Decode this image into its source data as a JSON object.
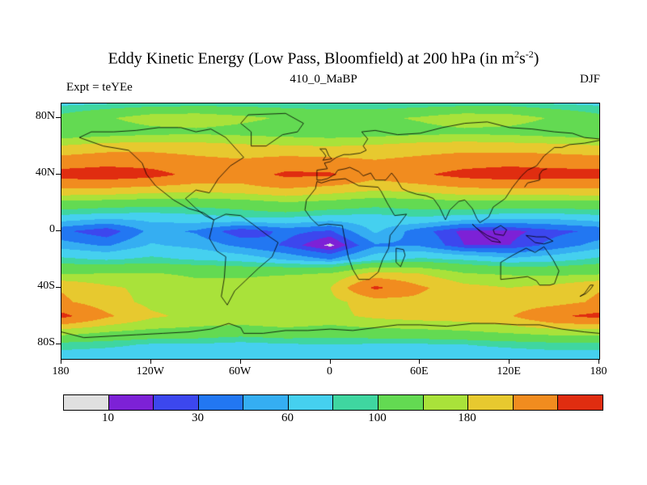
{
  "header": {
    "title_plain": "Eddy Kinetic Energy (Low Pass, Bloomfield) at 200 hPa (in m2 s-2)",
    "title_parts": {
      "pre": "Eddy Kinetic Energy (Low Pass, Bloomfield) at 200 hPa (in m",
      "sup1": "2",
      "mid": "s",
      "sup2": "-2",
      "post": ")"
    },
    "subtitle": "410_0_MaBP",
    "experiment_label": "Expt = teYEe",
    "season": "DJF"
  },
  "chart_data": {
    "type": "heatmap",
    "title": "Eddy Kinetic Energy (Low Pass, Bloomfield) at 200 hPa (in m2 s-2)",
    "subtitle": "410_0_MaBP",
    "experiment": "teYEe",
    "season": "DJF",
    "units": "m2 s-2",
    "pressure_level": "200 hPa",
    "xlabel_ticks": [
      "180",
      "120W",
      "60W",
      "0",
      "60E",
      "120E",
      "180"
    ],
    "xtick_lons": [
      -180,
      -120,
      -60,
      0,
      60,
      120,
      180
    ],
    "ylabel_ticks": [
      "80N",
      "40N",
      "0",
      "40S",
      "80S"
    ],
    "ytick_lats": [
      80,
      40,
      0,
      -40,
      -80
    ],
    "lon": [
      -180,
      -150,
      -120,
      -90,
      -60,
      -30,
      0,
      30,
      60,
      90,
      120,
      150,
      180
    ],
    "lat": [
      90,
      80,
      70,
      60,
      50,
      40,
      30,
      20,
      10,
      0,
      -10,
      -20,
      -30,
      -40,
      -50,
      -60,
      -70,
      -80,
      -90
    ],
    "values": [
      [
        75,
        80,
        85,
        88,
        88,
        85,
        80,
        80,
        85,
        88,
        88,
        80,
        75
      ],
      [
        110,
        135,
        160,
        165,
        150,
        135,
        130,
        132,
        145,
        165,
        160,
        135,
        110
      ],
      [
        105,
        115,
        125,
        130,
        125,
        118,
        112,
        118,
        125,
        130,
        125,
        115,
        105
      ],
      [
        185,
        200,
        205,
        200,
        190,
        185,
        180,
        188,
        200,
        205,
        200,
        195,
        185
      ],
      [
        255,
        270,
        265,
        245,
        235,
        250,
        245,
        232,
        245,
        262,
        270,
        262,
        255
      ],
      [
        330,
        340,
        325,
        280,
        262,
        315,
        310,
        250,
        290,
        325,
        340,
        330,
        330
      ],
      [
        228,
        225,
        210,
        200,
        210,
        228,
        210,
        190,
        200,
        222,
        228,
        228,
        228
      ],
      [
        125,
        118,
        112,
        112,
        118,
        135,
        125,
        112,
        118,
        125,
        122,
        122,
        125
      ],
      [
        72,
        66,
        66,
        72,
        80,
        82,
        72,
        72,
        80,
        72,
        66,
        66,
        72
      ],
      [
        33,
        20,
        50,
        43,
        20,
        34,
        28,
        63,
        36,
        16,
        16,
        26,
        33
      ],
      [
        52,
        43,
        62,
        55,
        41,
        28,
        7,
        43,
        43,
        20,
        20,
        35,
        52
      ],
      [
        85,
        78,
        85,
        78,
        72,
        58,
        45,
        72,
        85,
        78,
        65,
        72,
        85
      ],
      [
        135,
        142,
        142,
        135,
        130,
        135,
        142,
        195,
        180,
        142,
        135,
        130,
        135
      ],
      [
        225,
        188,
        168,
        150,
        160,
        180,
        180,
        315,
        240,
        195,
        180,
        195,
        225
      ],
      [
        240,
        200,
        168,
        155,
        168,
        175,
        168,
        200,
        215,
        200,
        195,
        207,
        240
      ],
      [
        320,
        240,
        188,
        168,
        168,
        180,
        168,
        190,
        200,
        205,
        225,
        290,
        320
      ],
      [
        168,
        148,
        135,
        130,
        123,
        130,
        123,
        130,
        135,
        142,
        155,
        168,
        168
      ],
      [
        90,
        85,
        78,
        78,
        72,
        78,
        80,
        78,
        78,
        80,
        85,
        90,
        90
      ],
      [
        65,
        65,
        65,
        65,
        65,
        65,
        65,
        65,
        65,
        65,
        65,
        65,
        65
      ]
    ],
    "levels": [
      10,
      20,
      30,
      45,
      60,
      80,
      100,
      140,
      180,
      230,
      300
    ],
    "colors": [
      "#e0e0e0",
      "#7d21d6",
      "#3c47ee",
      "#2277f2",
      "#35aef2",
      "#45d0ef",
      "#3fd6a0",
      "#63da52",
      "#a9e23a",
      "#e7c92f",
      "#f18c1f",
      "#e02d10"
    ],
    "colorbar_labels": [
      "10",
      "30",
      "60",
      "100",
      "180"
    ],
    "colorbar_label_level_indices": [
      0,
      2,
      4,
      6,
      8
    ],
    "axis_ranges": {
      "lon": [
        -180,
        180
      ],
      "lat": [
        -90,
        90
      ]
    },
    "coastlines": {
      "north_america": [
        [
          -168,
          66
        ],
        [
          -160,
          70
        ],
        [
          -145,
          70
        ],
        [
          -130,
          71
        ],
        [
          -115,
          73
        ],
        [
          -100,
          73
        ],
        [
          -90,
          70
        ],
        [
          -80,
          72
        ],
        [
          -70,
          66
        ],
        [
          -58,
          52
        ],
        [
          -67,
          46
        ],
        [
          -75,
          37
        ],
        [
          -81,
          27
        ],
        [
          -90,
          29
        ],
        [
          -97,
          23
        ],
        [
          -90,
          16
        ],
        [
          -84,
          11
        ],
        [
          -78,
          8
        ],
        [
          -85,
          13
        ],
        [
          -95,
          16
        ],
        [
          -105,
          22
        ],
        [
          -117,
          32
        ],
        [
          -123,
          40
        ],
        [
          -126,
          48
        ],
        [
          -135,
          57
        ],
        [
          -152,
          60
        ],
        [
          -168,
          66
        ]
      ],
      "south_america": [
        [
          -78,
          8
        ],
        [
          -70,
          12
        ],
        [
          -60,
          11
        ],
        [
          -52,
          5
        ],
        [
          -42,
          -3
        ],
        [
          -35,
          -8
        ],
        [
          -39,
          -18
        ],
        [
          -48,
          -26
        ],
        [
          -57,
          -35
        ],
        [
          -64,
          -42
        ],
        [
          -69,
          -52
        ],
        [
          -73,
          -46
        ],
        [
          -71,
          -33
        ],
        [
          -70,
          -18
        ],
        [
          -76,
          -14
        ],
        [
          -81,
          -5
        ],
        [
          -78,
          8
        ]
      ],
      "greenland": [
        [
          -53,
          60
        ],
        [
          -43,
          60
        ],
        [
          -32,
          68
        ],
        [
          -22,
          70
        ],
        [
          -18,
          76
        ],
        [
          -30,
          83
        ],
        [
          -55,
          82
        ],
        [
          -60,
          76
        ],
        [
          -53,
          70
        ],
        [
          -53,
          60
        ]
      ],
      "eurasia_north": [
        [
          -9,
          36
        ],
        [
          -9,
          43
        ],
        [
          -2,
          44
        ],
        [
          -4,
          48
        ],
        [
          0,
          49
        ],
        [
          4,
          52
        ],
        [
          9,
          54
        ],
        [
          13,
          54
        ],
        [
          20,
          55
        ],
        [
          24,
          57
        ],
        [
          22,
          60
        ],
        [
          25,
          65
        ],
        [
          21,
          70
        ],
        [
          30,
          71
        ],
        [
          45,
          68
        ],
        [
          60,
          69
        ],
        [
          75,
          73
        ],
        [
          90,
          76
        ],
        [
          105,
          77
        ],
        [
          120,
          73
        ],
        [
          135,
          72
        ],
        [
          150,
          70
        ],
        [
          162,
          69
        ],
        [
          170,
          66
        ],
        [
          180,
          65
        ]
      ],
      "asia_east_south": [
        [
          180,
          64
        ],
        [
          170,
          62
        ],
        [
          160,
          61
        ],
        [
          155,
          59
        ],
        [
          150,
          59
        ],
        [
          143,
          53
        ],
        [
          138,
          46
        ],
        [
          132,
          43
        ],
        [
          128,
          39
        ],
        [
          122,
          31
        ],
        [
          117,
          23
        ],
        [
          109,
          17
        ],
        [
          106,
          10
        ],
        [
          100,
          6
        ],
        [
          98,
          9
        ],
        [
          95,
          16
        ],
        [
          90,
          22
        ],
        [
          86,
          21
        ],
        [
          80,
          15
        ],
        [
          77,
          8
        ],
        [
          73,
          17
        ],
        [
          69,
          23
        ],
        [
          64,
          25
        ],
        [
          58,
          26
        ],
        [
          52,
          28
        ],
        [
          48,
          30
        ],
        [
          44,
          37
        ],
        [
          41,
          41
        ],
        [
          37,
          36
        ],
        [
          30,
          36
        ],
        [
          27,
          41
        ],
        [
          22,
          39
        ],
        [
          19,
          42
        ],
        [
          13,
          45
        ],
        [
          10,
          44
        ],
        [
          5,
          43
        ],
        [
          3,
          40
        ],
        [
          -2,
          37
        ],
        [
          -6,
          36
        ],
        [
          -9,
          36
        ]
      ],
      "africa": [
        [
          -9,
          35
        ],
        [
          -6,
          34
        ],
        [
          0,
          36
        ],
        [
          10,
          37
        ],
        [
          19,
          32
        ],
        [
          32,
          31
        ],
        [
          34,
          28
        ],
        [
          38,
          20
        ],
        [
          43,
          11
        ],
        [
          51,
          12
        ],
        [
          46,
          5
        ],
        [
          40,
          -3
        ],
        [
          39,
          -12
        ],
        [
          35,
          -20
        ],
        [
          32,
          -29
        ],
        [
          26,
          -34
        ],
        [
          19,
          -34
        ],
        [
          15,
          -27
        ],
        [
          12,
          -18
        ],
        [
          9,
          -2
        ],
        [
          8,
          4
        ],
        [
          -2,
          5
        ],
        [
          -8,
          4
        ],
        [
          -13,
          9
        ],
        [
          -17,
          15
        ],
        [
          -16,
          22
        ],
        [
          -10,
          30
        ],
        [
          -9,
          35
        ]
      ],
      "madagascar": [
        [
          44,
          -12
        ],
        [
          49,
          -13
        ],
        [
          50,
          -17
        ],
        [
          47,
          -25
        ],
        [
          44,
          -22
        ],
        [
          44,
          -12
        ]
      ],
      "australia": [
        [
          114,
          -22
        ],
        [
          114,
          -34
        ],
        [
          124,
          -33
        ],
        [
          132,
          -32
        ],
        [
          138,
          -35
        ],
        [
          140,
          -38
        ],
        [
          147,
          -38
        ],
        [
          150,
          -37
        ],
        [
          153,
          -28
        ],
        [
          149,
          -20
        ],
        [
          143,
          -11
        ],
        [
          137,
          -15
        ],
        [
          131,
          -12
        ],
        [
          122,
          -17
        ],
        [
          114,
          -22
        ]
      ],
      "sumatra_java": [
        [
          95,
          5
        ],
        [
          100,
          0
        ],
        [
          104,
          -4
        ],
        [
          108,
          -7
        ],
        [
          114,
          -8
        ],
        [
          112,
          -6
        ],
        [
          105,
          -3
        ],
        [
          98,
          2
        ],
        [
          95,
          5
        ]
      ],
      "borneo": [
        [
          109,
          1
        ],
        [
          114,
          4
        ],
        [
          118,
          1
        ],
        [
          116,
          -3
        ],
        [
          110,
          -2
        ],
        [
          109,
          1
        ]
      ],
      "new_guinea": [
        [
          131,
          -3
        ],
        [
          138,
          -4
        ],
        [
          144,
          -4
        ],
        [
          149,
          -7
        ],
        [
          143,
          -9
        ],
        [
          137,
          -8
        ],
        [
          131,
          -3
        ]
      ],
      "japan": [
        [
          130,
          31
        ],
        [
          132,
          34
        ],
        [
          136,
          35
        ],
        [
          140,
          36
        ],
        [
          140,
          40
        ],
        [
          142,
          43
        ],
        [
          145,
          44
        ]
      ],
      "uk": [
        [
          -5,
          50
        ],
        [
          -3,
          53
        ],
        [
          -5,
          56
        ],
        [
          -7,
          58
        ],
        [
          -3,
          58
        ],
        [
          -1,
          53
        ],
        [
          1,
          51
        ],
        [
          -5,
          50
        ]
      ],
      "new_zealand": [
        [
          167,
          -46
        ],
        [
          170,
          -44
        ],
        [
          172,
          -41
        ],
        [
          174,
          -38
        ],
        [
          176,
          -38
        ],
        [
          174,
          -41
        ],
        [
          171,
          -44
        ],
        [
          167,
          -46
        ]
      ],
      "antarctica": [
        [
          -180,
          -71
        ],
        [
          -165,
          -75
        ],
        [
          -148,
          -74
        ],
        [
          -130,
          -73
        ],
        [
          -112,
          -72
        ],
        [
          -95,
          -71
        ],
        [
          -80,
          -69
        ],
        [
          -68,
          -65
        ],
        [
          -60,
          -68
        ],
        [
          -58,
          -72
        ],
        [
          -45,
          -72
        ],
        [
          -30,
          -70
        ],
        [
          -15,
          -70
        ],
        [
          0,
          -69
        ],
        [
          15,
          -70
        ],
        [
          30,
          -68
        ],
        [
          45,
          -66
        ],
        [
          60,
          -66
        ],
        [
          78,
          -67
        ],
        [
          95,
          -65
        ],
        [
          110,
          -65
        ],
        [
          125,
          -66
        ],
        [
          140,
          -66
        ],
        [
          155,
          -69
        ],
        [
          170,
          -71
        ],
        [
          180,
          -72
        ]
      ]
    }
  }
}
